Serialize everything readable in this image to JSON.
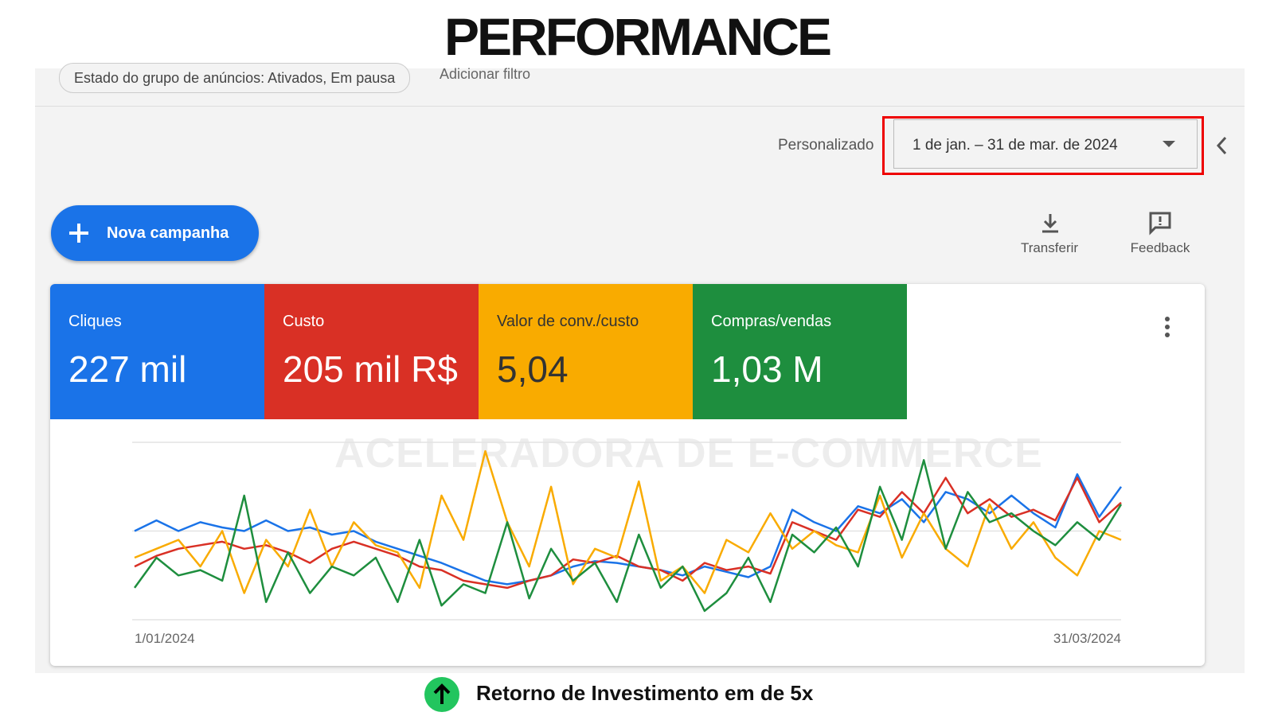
{
  "header": {
    "title": "PERFORMANCE"
  },
  "filters": {
    "chip": "Estado do grupo de anúncios: Ativados, Em pausa",
    "add": "Adicionar filtro"
  },
  "date": {
    "label": "Personalizado",
    "range": "1 de jan. – 31 de mar. de 2024"
  },
  "actions": {
    "new_campaign": "Nova campanha",
    "download": "Transferir",
    "feedback": "Feedback"
  },
  "watermark": "ACELERADORA DE E-COMMERCE",
  "metrics": [
    "227 mil",
    "205 mil R$",
    "5,04",
    "1,03 M"
  ],
  "chart_data": {
    "type": "line",
    "categories": [
      "1/01/2024",
      null,
      null,
      null,
      null,
      null,
      null,
      null,
      null,
      null,
      null,
      null,
      null,
      null,
      null,
      null,
      null,
      null,
      null,
      null,
      null,
      null,
      null,
      null,
      null,
      null,
      null,
      null,
      null,
      null,
      null,
      null,
      null,
      null,
      null,
      null,
      null,
      null,
      null,
      null,
      null,
      null,
      null,
      null,
      null,
      "31/03/2024"
    ],
    "ylim": [
      0,
      100
    ],
    "series": [
      {
        "name": "Cliques",
        "color": "#1a73e8",
        "values": [
          50,
          56,
          50,
          55,
          52,
          50,
          56,
          50,
          52,
          48,
          50,
          44,
          40,
          36,
          32,
          27,
          22,
          20,
          22,
          25,
          30,
          33,
          32,
          30,
          28,
          25,
          30,
          27,
          24,
          30,
          62,
          55,
          50,
          64,
          60,
          68,
          55,
          72,
          68,
          60,
          70,
          60,
          52,
          82,
          58,
          75
        ]
      },
      {
        "name": "Custo",
        "color": "#d93025",
        "values": [
          30,
          36,
          40,
          42,
          44,
          40,
          42,
          38,
          32,
          40,
          44,
          40,
          36,
          30,
          28,
          22,
          20,
          18,
          22,
          25,
          34,
          32,
          36,
          30,
          28,
          22,
          32,
          28,
          30,
          26,
          55,
          50,
          45,
          62,
          58,
          72,
          60,
          80,
          60,
          68,
          58,
          62,
          56,
          80,
          55,
          66
        ]
      },
      {
        "name": "Valor de conv./custo",
        "color": "#f9ab00",
        "values": [
          35,
          40,
          45,
          30,
          50,
          15,
          45,
          30,
          62,
          30,
          55,
          42,
          38,
          18,
          70,
          45,
          95,
          55,
          30,
          75,
          20,
          40,
          35,
          78,
          22,
          30,
          15,
          45,
          38,
          60,
          40,
          50,
          42,
          38,
          70,
          35,
          60,
          40,
          30,
          65,
          40,
          55,
          35,
          25,
          50,
          45
        ]
      },
      {
        "name": "Compras/vendas",
        "color": "#1e8e3e",
        "values": [
          18,
          35,
          25,
          28,
          22,
          70,
          10,
          38,
          15,
          30,
          25,
          35,
          10,
          45,
          8,
          20,
          15,
          55,
          12,
          40,
          22,
          32,
          10,
          48,
          18,
          30,
          5,
          15,
          35,
          10,
          48,
          38,
          52,
          30,
          75,
          45,
          90,
          40,
          72,
          55,
          60,
          50,
          42,
          55,
          45,
          65
        ]
      }
    ]
  },
  "footer": {
    "text": "Retorno de Investimento em de 5x"
  }
}
